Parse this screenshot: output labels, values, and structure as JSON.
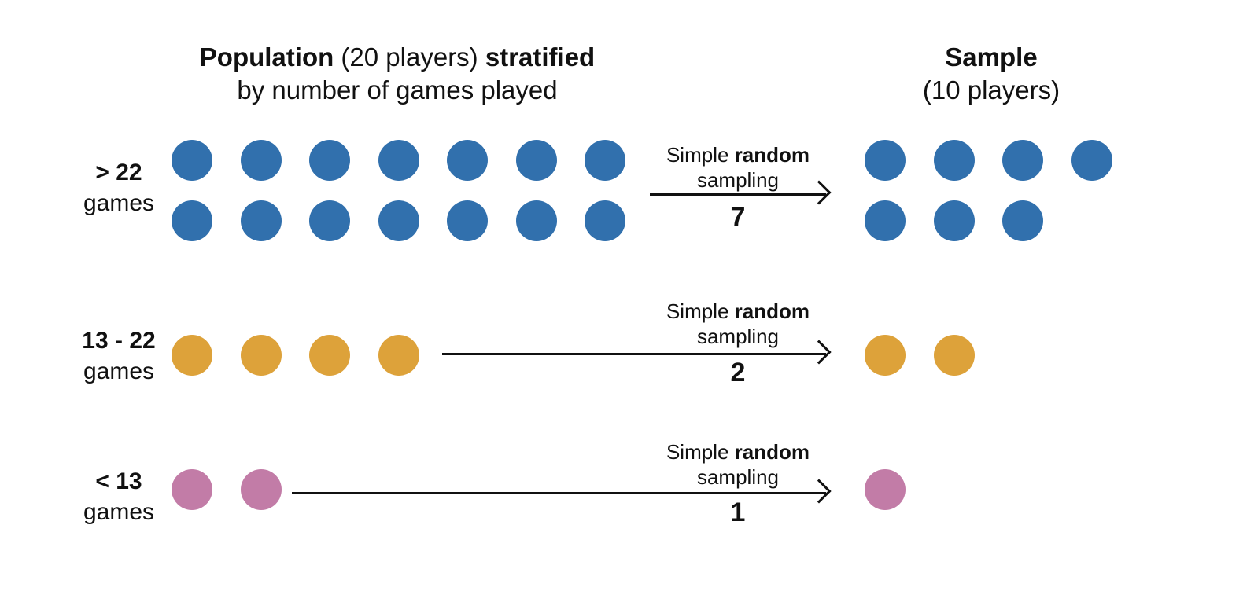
{
  "titles": {
    "population": {
      "part1_bold": "Population",
      "part2": " (20 players) ",
      "part3_bold": "stratified",
      "line2": "by number of games played"
    },
    "sample": {
      "line1_bold": "Sample",
      "line2": "(10 players)"
    }
  },
  "method": {
    "word1": "Simple ",
    "word2_bold": "random",
    "line2": "sampling"
  },
  "strata": [
    {
      "range": "> 22",
      "unit": "games",
      "population_count": 14,
      "sample_count": 7,
      "sample_label": "7",
      "color": "#3170ad"
    },
    {
      "range": "13 - 22",
      "unit": "games",
      "population_count": 4,
      "sample_count": 2,
      "sample_label": "2",
      "color": "#dda23a"
    },
    {
      "range": "< 13",
      "unit": "games",
      "population_count": 2,
      "sample_count": 1,
      "sample_label": "1",
      "color": "#c27ca7"
    }
  ]
}
